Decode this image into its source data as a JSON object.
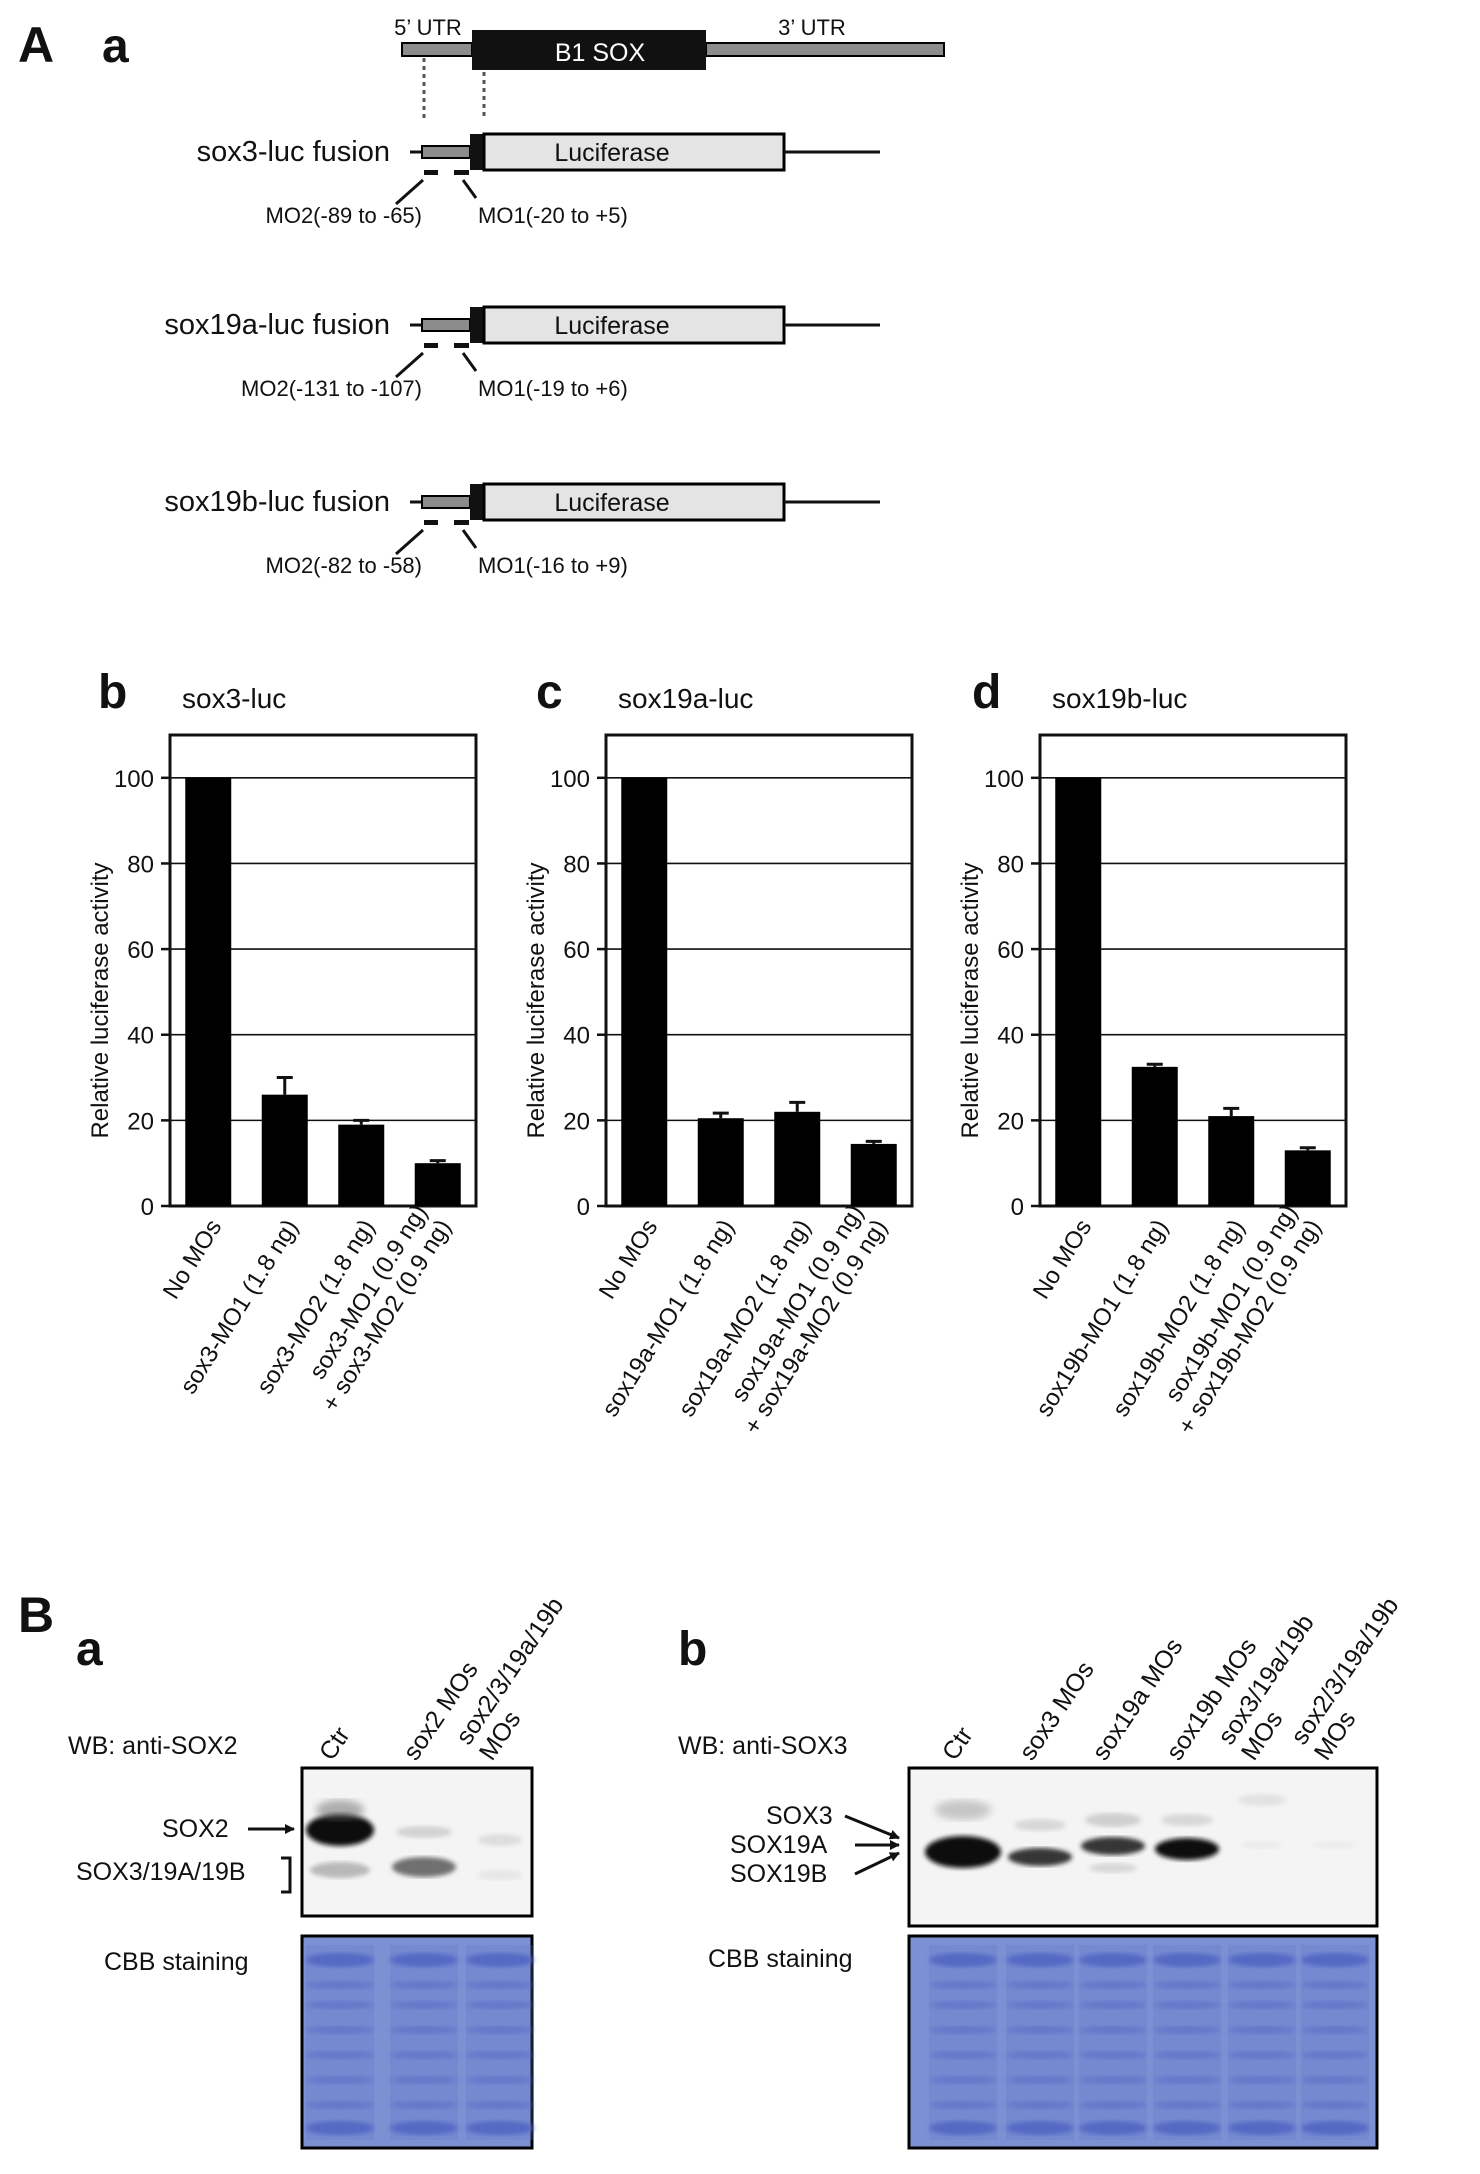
{
  "panel_labels": {
    "A": "A",
    "Aa": "a",
    "b": "b",
    "c": "c",
    "d": "d",
    "B": "B",
    "Ba": "a",
    "Bb": "b"
  },
  "gene_diagram": {
    "utr5": "5’ UTR",
    "cds": "B1 SOX",
    "utr3": "3’ UTR"
  },
  "constructs": [
    {
      "label": "sox3-luc fusion",
      "reporter": "Luciferase",
      "mo2": "MO2(-89 to -65)",
      "mo1": "MO1(-20 to +5)"
    },
    {
      "label": "sox19a-luc fusion",
      "reporter": "Luciferase",
      "mo2": "MO2(-131 to -107)",
      "mo1": "MO1(-19 to +6)"
    },
    {
      "label": "sox19b-luc fusion",
      "reporter": "Luciferase",
      "mo2": "MO2(-82 to -58)",
      "mo1": "MO1(-16 to +9)"
    }
  ],
  "chart_data": [
    {
      "type": "bar",
      "panel": "b",
      "title": "sox3-luc",
      "ylabel": "Relative luciferase activity",
      "ylim": [
        0,
        110
      ],
      "yticks": [
        "0",
        "20",
        "40",
        "60",
        "80",
        "100"
      ],
      "grid": true,
      "categories": [
        [
          "No MOs"
        ],
        [
          "sox3-MO1 (1.8 ng)"
        ],
        [
          "sox3-MO2 (1.8 ng)"
        ],
        [
          "sox3-MO1 (0.9 ng)",
          "+ sox3-MO2 (0.9 ng)"
        ]
      ],
      "values": [
        100,
        26,
        19,
        10
      ],
      "errors": [
        0,
        4,
        1,
        0.6
      ]
    },
    {
      "type": "bar",
      "panel": "c",
      "title": "sox19a-luc",
      "ylabel": "Relative luciferase activity",
      "ylim": [
        0,
        110
      ],
      "yticks": [
        "0",
        "20",
        "40",
        "60",
        "80",
        "100"
      ],
      "grid": true,
      "categories": [
        [
          "No MOs"
        ],
        [
          "sox19a-MO1 (1.8 ng)"
        ],
        [
          "sox19a-MO2 (1.8 ng)"
        ],
        [
          "sox19a-MO1 (0.9 ng)",
          "+ sox19a-MO2 (0.9 ng)"
        ]
      ],
      "values": [
        100,
        20.5,
        22,
        14.5
      ],
      "errors": [
        0,
        1.2,
        2.2,
        0.6
      ]
    },
    {
      "type": "bar",
      "panel": "d",
      "title": "sox19b-luc",
      "ylabel": "Relative luciferase activity",
      "ylim": [
        0,
        110
      ],
      "yticks": [
        "0",
        "20",
        "40",
        "60",
        "80",
        "100"
      ],
      "grid": true,
      "categories": [
        [
          "No MOs"
        ],
        [
          "sox19b-MO1 (1.8 ng)"
        ],
        [
          "sox19b-MO2 (1.8 ng)"
        ],
        [
          "sox19b-MO1 (0.9 ng)",
          "+ sox19b-MO2 (0.9 ng)"
        ]
      ],
      "values": [
        100,
        32.5,
        21,
        13
      ],
      "errors": [
        0,
        0.6,
        1.8,
        0.6
      ]
    }
  ],
  "western_a": {
    "wb_label": "WB: anti-SOX2",
    "lanes": [
      [
        "Ctr"
      ],
      [
        "sox2 MOs"
      ],
      [
        "sox2/3/19a/19b",
        "MOs"
      ]
    ],
    "band_labels": [
      "SOX2",
      "SOX3/19A/19B"
    ],
    "stain_label": "CBB staining"
  },
  "western_b": {
    "wb_label": "WB: anti-SOX3",
    "lanes": [
      [
        "Ctr"
      ],
      [
        "sox3 MOs"
      ],
      [
        "sox19a MOs"
      ],
      [
        "sox19b MOs"
      ],
      [
        "sox3/19a/19b",
        "MOs"
      ],
      [
        "sox2/3/19a/19b",
        "MOs"
      ]
    ],
    "band_labels": [
      "SOX3",
      "SOX19A",
      "SOX19B"
    ],
    "stain_label": "CBB staining"
  },
  "colors": {
    "bar": "#000000",
    "gel_bg": "#f6f6f6",
    "band": "#1a1a1a",
    "cbb_bg": "#7f93d6",
    "cbb_band": "#4a5fbf"
  }
}
